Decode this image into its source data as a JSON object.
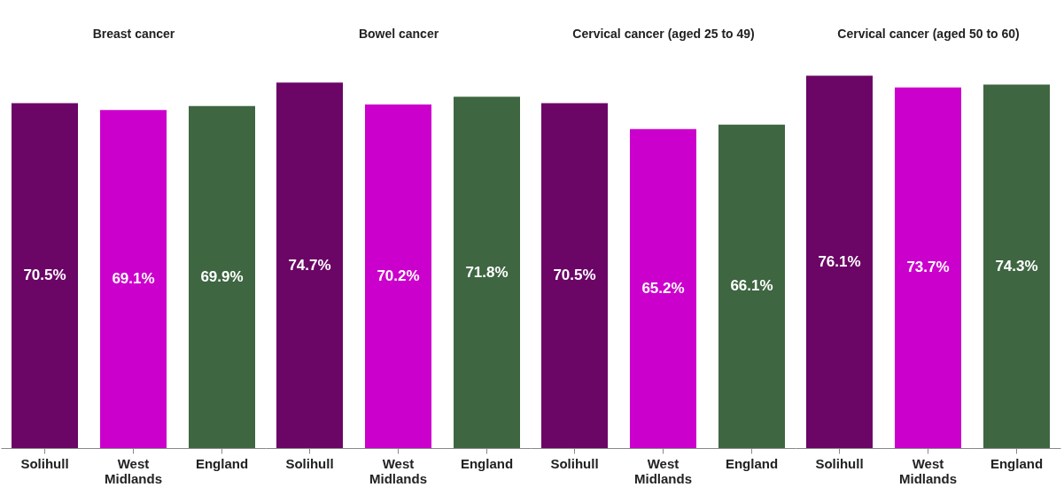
{
  "chart_data": [
    {
      "type": "bar",
      "title": "Breast cancer",
      "categories": [
        "Solihull",
        "West Midlands",
        "England"
      ],
      "values": [
        70.5,
        69.1,
        69.9
      ],
      "value_labels": [
        "70.5%",
        "69.1%",
        "69.9%"
      ],
      "colors": [
        "#6b0566",
        "#cc00cc",
        "#3e6641"
      ]
    },
    {
      "type": "bar",
      "title": "Bowel cancer",
      "categories": [
        "Solihull",
        "West Midlands",
        "England"
      ],
      "values": [
        74.7,
        70.2,
        71.8
      ],
      "value_labels": [
        "74.7%",
        "70.2%",
        "71.8%"
      ],
      "colors": [
        "#6b0566",
        "#cc00cc",
        "#3e6641"
      ]
    },
    {
      "type": "bar",
      "title": "Cervical cancer (aged 25 to 49)",
      "categories": [
        "Solihull",
        "West Midlands",
        "England"
      ],
      "values": [
        70.5,
        65.2,
        66.1
      ],
      "value_labels": [
        "70.5%",
        "65.2%",
        "66.1%"
      ],
      "colors": [
        "#6b0566",
        "#cc00cc",
        "#3e6641"
      ]
    },
    {
      "type": "bar",
      "title": "Cervical cancer (aged 50 to 60)",
      "categories": [
        "Solihull",
        "West Midlands",
        "England"
      ],
      "values": [
        76.1,
        73.7,
        74.3
      ],
      "value_labels": [
        "76.1%",
        "73.7%",
        "74.3%"
      ],
      "colors": [
        "#6b0566",
        "#cc00cc",
        "#3e6641"
      ]
    }
  ]
}
